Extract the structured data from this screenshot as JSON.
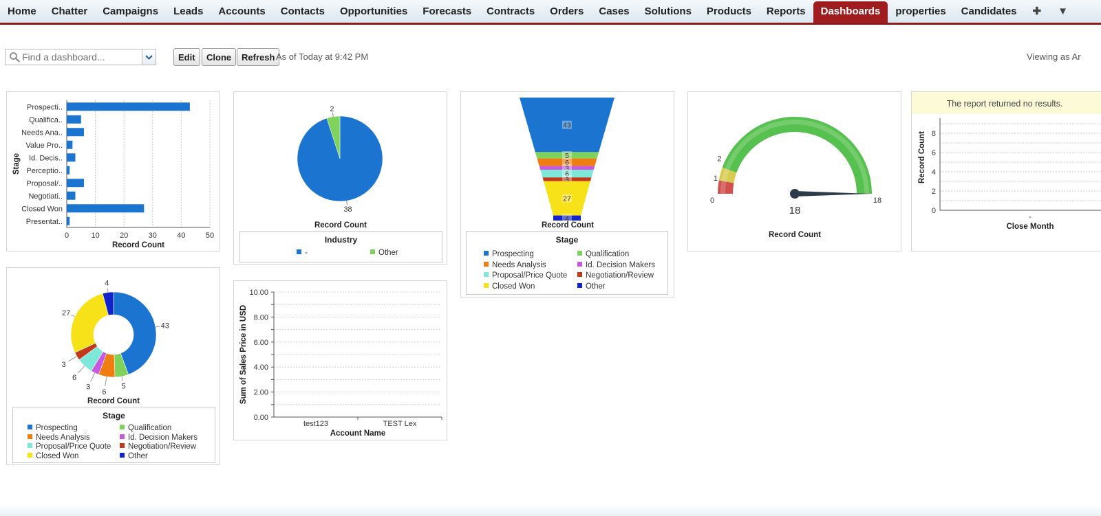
{
  "tabs": [
    "Home",
    "Chatter",
    "Campaigns",
    "Leads",
    "Accounts",
    "Contacts",
    "Opportunities",
    "Forecasts",
    "Contracts",
    "Orders",
    "Cases",
    "Solutions",
    "Products",
    "Reports",
    "Dashboards",
    "properties",
    "Candidates"
  ],
  "active_tab": "Dashboards",
  "tab_icons": {
    "add": "plus-icon",
    "more": "chevron-down-icon"
  },
  "toolbar": {
    "search_placeholder": "Find a dashboard...",
    "edit_label": "Edit",
    "clone_label": "Clone",
    "refresh_label": "Refresh",
    "as_of": "As of Today at 9:42 PM",
    "viewing_as": "Viewing as Ar"
  },
  "colors": {
    "accent": "#a01d1f",
    "bar": "#1b75d0",
    "prospecting": "#1b75d0",
    "qualification": "#7fd25b",
    "needs_analysis": "#ef7d11",
    "id_decision_makers": "#c858e0",
    "proposal_price_quote": "#7ee8d8",
    "negotiation_review": "#c0391b",
    "closed_won": "#f7e119",
    "other": "#1123c9"
  },
  "chart_data": [
    {
      "type": "bar",
      "orientation": "horizontal",
      "categories": [
        "Prospecti..",
        "Qualifica..",
        "Needs Ana..",
        "Value Pro..",
        "Id. Decis..",
        "Perceptio..",
        "Proposal/..",
        "Negotiati..",
        "Closed Won",
        "Presentat.."
      ],
      "values": [
        43,
        5,
        6,
        2,
        3,
        1,
        6,
        3,
        27,
        1
      ],
      "xlabel": "Record Count",
      "ylabel": "Stage",
      "xlim": [
        0,
        50
      ],
      "xticks": [
        0,
        10,
        20,
        30,
        40,
        50
      ],
      "grid": true
    },
    {
      "type": "pie",
      "slices": [
        {
          "name": "-",
          "value": 38,
          "color": "#1b75d0"
        },
        {
          "name": "Other",
          "value": 2,
          "color": "#7fd25b"
        }
      ],
      "xlabel": "Record Count",
      "legend_title": "Industry"
    },
    {
      "type": "funnel",
      "stages": [
        {
          "name": "Prospecting",
          "value": 43,
          "color": "#1b75d0"
        },
        {
          "name": "Qualification",
          "value": 5,
          "color": "#7fd25b"
        },
        {
          "name": "Needs Analysis",
          "value": 6,
          "color": "#ef7d11"
        },
        {
          "name": "Id. Decision Makers",
          "value": 3,
          "color": "#c858e0"
        },
        {
          "name": "Proposal/Price Quote",
          "value": 6,
          "color": "#7ee8d8"
        },
        {
          "name": "Negotiation/Review",
          "value": 3,
          "color": "#c0391b"
        },
        {
          "name": "Closed Won",
          "value": 27,
          "color": "#f7e119"
        },
        {
          "name": "Other",
          "value": 4,
          "color": "#1123c9"
        }
      ],
      "visible_labels": [
        "43",
        "5",
        "6",
        "3",
        "6",
        "3",
        "27",
        "4"
      ],
      "xlabel": "Record Count",
      "legend_title": "Stage"
    },
    {
      "type": "gauge",
      "min": 0,
      "max": 18,
      "value": 18,
      "breakpoints": [
        1,
        2
      ],
      "xlabel": "Record Count"
    },
    {
      "type": "line",
      "message": "The report returned no results.",
      "ylabel": "Record Count",
      "xlabel": "Close Month",
      "yticks": [
        0,
        2,
        4,
        6,
        8
      ],
      "categories": [
        "-"
      ],
      "grid": true
    },
    {
      "type": "donut",
      "slices": [
        {
          "name": "Prospecting",
          "value": 43,
          "color": "#1b75d0"
        },
        {
          "name": "Qualification",
          "value": 5,
          "color": "#7fd25b"
        },
        {
          "name": "Needs Analysis",
          "value": 6,
          "color": "#ef7d11"
        },
        {
          "name": "Id. Decision Makers",
          "value": 3,
          "color": "#c858e0"
        },
        {
          "name": "Proposal/Price Quote",
          "value": 6,
          "color": "#7ee8d8"
        },
        {
          "name": "Negotiation/Review",
          "value": 3,
          "color": "#c0391b"
        },
        {
          "name": "Closed Won",
          "value": 27,
          "color": "#f7e119"
        },
        {
          "name": "Other",
          "value": 4,
          "color": "#1123c9"
        }
      ],
      "xlabel": "Record Count",
      "legend_title": "Stage"
    },
    {
      "type": "bar",
      "categories": [
        "test123",
        "TEST Lex"
      ],
      "values": [
        0,
        0
      ],
      "xlabel": "Account Name",
      "ylabel": "Sum of Sales Price in USD",
      "ylim": [
        0,
        10
      ],
      "ytick_labels": [
        "0.00",
        "2.00",
        "4.00",
        "6.00",
        "8.00",
        "10.00"
      ],
      "grid": true
    }
  ]
}
